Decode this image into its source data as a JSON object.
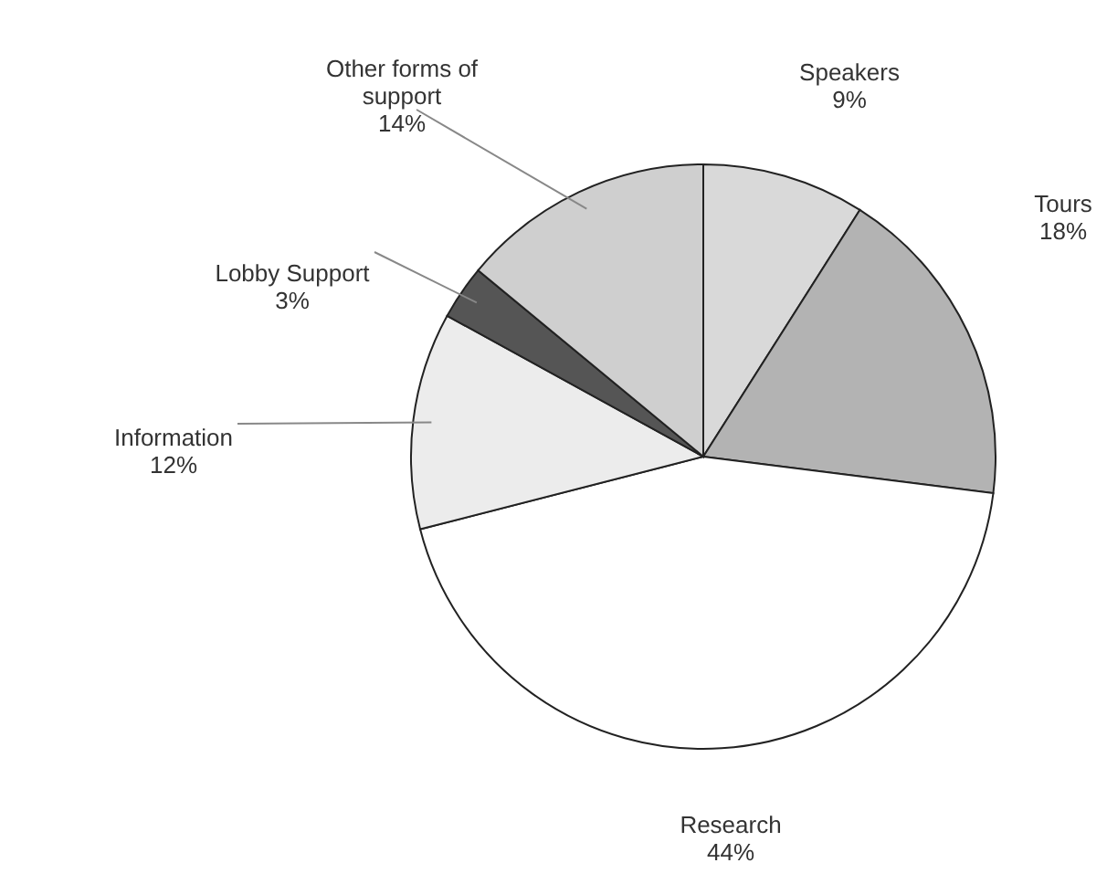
{
  "chart_data": {
    "type": "pie",
    "categories": [
      "Speakers",
      "Tours",
      "Research",
      "Information",
      "Lobby Support",
      "Other forms of support"
    ],
    "values": [
      9,
      18,
      44,
      12,
      3,
      14
    ],
    "value_labels": [
      "9%",
      "18%",
      "44%",
      "12%",
      "3%",
      "14%"
    ],
    "colors": [
      "#d9d9d9",
      "#b3b3b3",
      "#ffffff",
      "#ececec",
      "#555555",
      "#cfcfcf"
    ]
  }
}
